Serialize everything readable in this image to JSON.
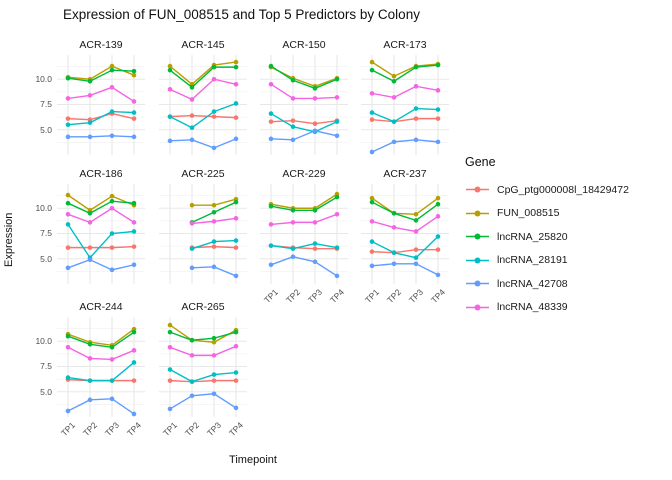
{
  "chart_data": {
    "type": "line",
    "title": "Expression of FUN_008515 and Top 5 Predictors by Colony",
    "xlabel": "Timepoint",
    "ylabel": "Expression",
    "legend_title": "Gene",
    "x": [
      "TP1",
      "TP2",
      "TP3",
      "TP4"
    ],
    "ylim": [
      2.5,
      12.4
    ],
    "y_ticks": [
      {
        "label": "10.0",
        "value": 10.0
      },
      {
        "label": "7.5",
        "value": 7.5
      },
      {
        "label": "5.0",
        "value": 5.0
      }
    ],
    "y_minor": [
      3.75,
      6.25,
      8.75,
      11.25
    ],
    "grid_major_color": "#e8e8e8",
    "grid_minor_color": "#f2f2f2",
    "legend_position": "right",
    "series": [
      {
        "name": "CpG_ptg000008l_18429472",
        "color": "#F8766D"
      },
      {
        "name": "FUN_008515",
        "color": "#B79F00"
      },
      {
        "name": "lncRNA_25820",
        "color": "#00BA38"
      },
      {
        "name": "lncRNA_28191",
        "color": "#00BFC4"
      },
      {
        "name": "lncRNA_42708",
        "color": "#619CFF"
      },
      {
        "name": "lncRNA_48339",
        "color": "#F564E3"
      }
    ],
    "facets": [
      {
        "colony": "ACR-139",
        "row": 0,
        "col": 0,
        "x_axis": false,
        "values": {
          "CpG_ptg000008l_18429472": [
            6.1,
            6.0,
            6.6,
            6.1
          ],
          "FUN_008515": [
            10.2,
            10.0,
            11.3,
            10.4
          ],
          "lncRNA_25820": [
            10.1,
            9.8,
            10.9,
            10.8
          ],
          "lncRNA_28191": [
            5.5,
            5.7,
            6.8,
            6.7
          ],
          "lncRNA_42708": [
            4.3,
            4.3,
            4.4,
            4.3
          ],
          "lncRNA_48339": [
            8.1,
            8.4,
            9.2,
            7.8
          ]
        }
      },
      {
        "colony": "ACR-145",
        "row": 0,
        "col": 1,
        "x_axis": false,
        "values": {
          "CpG_ptg000008l_18429472": [
            6.3,
            6.4,
            6.3,
            6.2
          ],
          "FUN_008515": [
            11.3,
            9.5,
            11.4,
            11.7
          ],
          "lncRNA_25820": [
            10.9,
            9.2,
            11.2,
            11.2
          ],
          "lncRNA_28191": [
            6.3,
            5.2,
            6.8,
            7.6
          ],
          "lncRNA_42708": [
            3.9,
            4.0,
            3.2,
            4.1
          ],
          "lncRNA_48339": [
            9.0,
            8.0,
            10.0,
            9.5
          ]
        }
      },
      {
        "colony": "ACR-150",
        "row": 0,
        "col": 2,
        "x_axis": false,
        "values": {
          "CpG_ptg000008l_18429472": [
            5.8,
            5.9,
            5.6,
            5.9
          ],
          "FUN_008515": [
            11.2,
            10.1,
            9.3,
            10.1
          ],
          "lncRNA_25820": [
            11.3,
            9.9,
            9.1,
            10.0
          ],
          "lncRNA_28191": [
            6.6,
            5.3,
            4.8,
            5.8
          ],
          "lncRNA_42708": [
            4.1,
            4.0,
            4.9,
            4.4
          ],
          "lncRNA_48339": [
            9.5,
            8.1,
            8.1,
            8.2
          ]
        }
      },
      {
        "colony": "ACR-173",
        "row": 0,
        "col": 3,
        "x_axis": false,
        "values": {
          "CpG_ptg000008l_18429472": [
            6.0,
            5.8,
            6.1,
            6.1
          ],
          "FUN_008515": [
            11.7,
            10.3,
            11.3,
            11.5
          ],
          "lncRNA_25820": [
            10.9,
            9.8,
            11.2,
            11.4
          ],
          "lncRNA_28191": [
            6.7,
            5.8,
            7.1,
            7.0
          ],
          "lncRNA_42708": [
            2.8,
            3.8,
            4.0,
            3.8
          ],
          "lncRNA_48339": [
            8.6,
            8.2,
            9.3,
            8.9
          ]
        }
      },
      {
        "colony": "ACR-186",
        "row": 1,
        "col": 0,
        "x_axis": false,
        "values": {
          "CpG_ptg000008l_18429472": [
            6.1,
            6.1,
            6.1,
            6.2
          ],
          "FUN_008515": [
            11.3,
            9.8,
            11.2,
            10.3
          ],
          "lncRNA_25820": [
            10.5,
            9.5,
            10.7,
            10.5
          ],
          "lncRNA_28191": [
            8.4,
            5.1,
            7.5,
            7.7
          ],
          "lncRNA_42708": [
            4.1,
            4.9,
            3.9,
            4.4
          ],
          "lncRNA_48339": [
            9.4,
            8.6,
            10.0,
            8.6
          ]
        }
      },
      {
        "colony": "ACR-225",
        "row": 1,
        "col": 1,
        "x_axis": false,
        "values": {
          "CpG_ptg000008l_18429472": [
            null,
            6.1,
            6.2,
            6.1
          ],
          "FUN_008515": [
            null,
            10.3,
            10.3,
            10.9
          ],
          "lncRNA_25820": [
            null,
            8.6,
            9.6,
            10.6
          ],
          "lncRNA_28191": [
            null,
            6.0,
            6.7,
            6.8
          ],
          "lncRNA_42708": [
            null,
            4.1,
            4.2,
            3.3
          ],
          "lncRNA_48339": [
            null,
            8.5,
            8.7,
            9.0
          ]
        }
      },
      {
        "colony": "ACR-229",
        "row": 1,
        "col": 2,
        "x_axis": true,
        "values": {
          "CpG_ptg000008l_18429472": [
            6.3,
            6.1,
            6.0,
            6.0
          ],
          "FUN_008515": [
            10.4,
            10.0,
            10.0,
            11.4
          ],
          "lncRNA_25820": [
            10.2,
            9.8,
            9.8,
            11.1
          ],
          "lncRNA_28191": [
            6.3,
            6.0,
            6.5,
            6.1
          ],
          "lncRNA_42708": [
            4.4,
            5.2,
            4.7,
            3.3
          ],
          "lncRNA_48339": [
            8.4,
            8.6,
            8.6,
            9.4
          ]
        }
      },
      {
        "colony": "ACR-237",
        "row": 1,
        "col": 3,
        "x_axis": true,
        "values": {
          "CpG_ptg000008l_18429472": [
            5.7,
            5.6,
            5.9,
            5.9
          ],
          "FUN_008515": [
            11.0,
            9.5,
            9.4,
            11.0
          ],
          "lncRNA_25820": [
            10.6,
            9.5,
            8.8,
            10.4
          ],
          "lncRNA_28191": [
            6.7,
            5.6,
            5.1,
            7.2
          ],
          "lncRNA_42708": [
            4.3,
            4.5,
            4.5,
            3.4
          ],
          "lncRNA_48339": [
            8.7,
            8.1,
            7.7,
            9.2
          ]
        }
      },
      {
        "colony": "ACR-244",
        "row": 2,
        "col": 0,
        "x_axis": true,
        "values": {
          "CpG_ptg000008l_18429472": [
            6.2,
            6.1,
            6.1,
            6.1
          ],
          "FUN_008515": [
            10.7,
            9.9,
            9.6,
            11.2
          ],
          "lncRNA_25820": [
            10.5,
            9.7,
            9.4,
            10.9
          ],
          "lncRNA_28191": [
            6.4,
            6.1,
            6.1,
            7.9
          ],
          "lncRNA_42708": [
            3.1,
            4.2,
            4.3,
            2.8
          ],
          "lncRNA_48339": [
            9.4,
            8.3,
            8.2,
            9.1
          ]
        }
      },
      {
        "colony": "ACR-265",
        "row": 2,
        "col": 1,
        "x_axis": true,
        "values": {
          "CpG_ptg000008l_18429472": [
            6.1,
            6.0,
            6.1,
            6.1
          ],
          "FUN_008515": [
            11.6,
            10.1,
            9.9,
            11.1
          ],
          "lncRNA_25820": [
            10.9,
            10.1,
            10.3,
            10.9
          ],
          "lncRNA_28191": [
            7.2,
            6.0,
            6.7,
            6.9
          ],
          "lncRNA_42708": [
            3.3,
            4.6,
            4.8,
            3.4
          ],
          "lncRNA_48339": [
            9.4,
            8.6,
            8.6,
            9.5
          ]
        }
      }
    ]
  }
}
